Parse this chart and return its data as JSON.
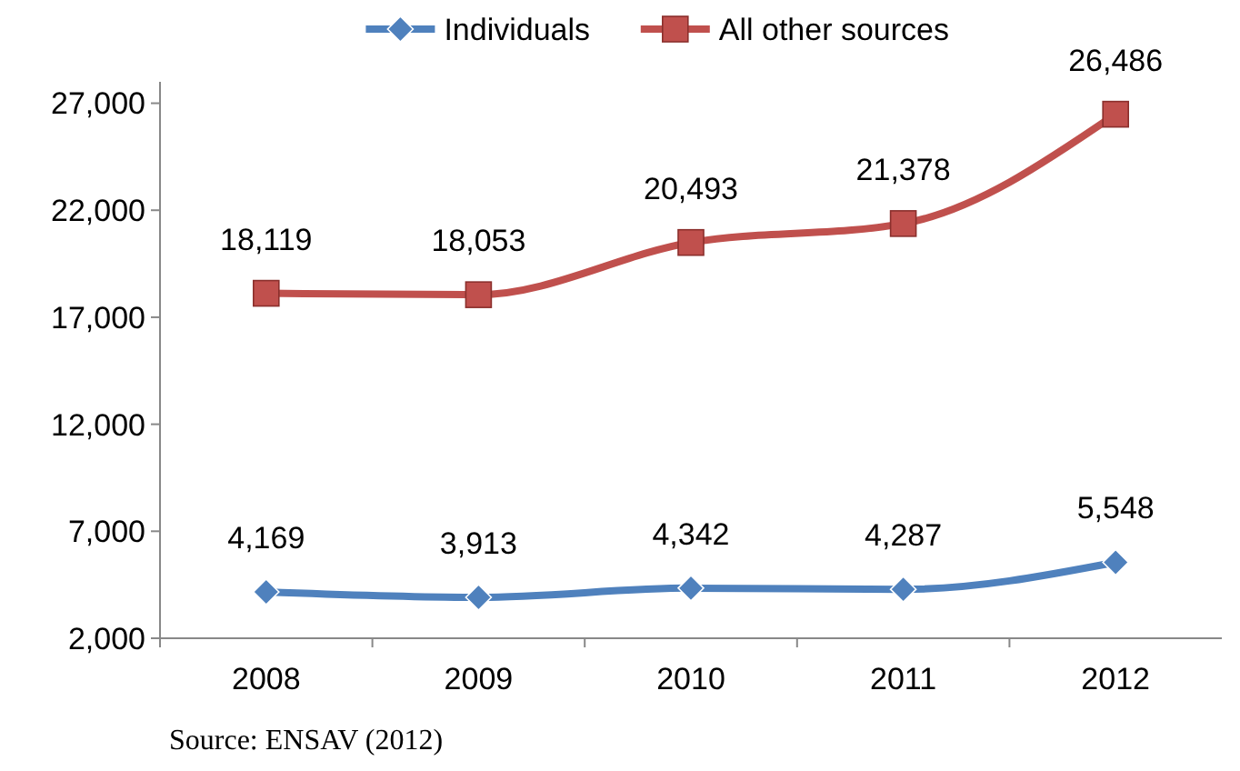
{
  "chart_data": {
    "type": "line",
    "categories": [
      "2008",
      "2009",
      "2010",
      "2011",
      "2012"
    ],
    "series": [
      {
        "name": "Individuals",
        "color": "#4f81bd",
        "marker": "diamond",
        "values": [
          4169,
          3913,
          4342,
          4287,
          5548
        ],
        "value_labels": [
          "4,169",
          "3,913",
          "4,342",
          "4,287",
          "5,548"
        ]
      },
      {
        "name": "All other sources",
        "color": "#c0504d",
        "marker": "square",
        "values": [
          18119,
          18053,
          20493,
          21378,
          26486
        ],
        "value_labels": [
          "18,119",
          "18,053",
          "20,493",
          "21,378",
          "26,486"
        ]
      }
    ],
    "ylim": [
      2000,
      28000
    ],
    "yticks": [
      {
        "value": 2000,
        "label": "2,000"
      },
      {
        "value": 7000,
        "label": "7,000"
      },
      {
        "value": 12000,
        "label": "12,000"
      },
      {
        "value": 17000,
        "label": "17,000"
      },
      {
        "value": 22000,
        "label": "22,000"
      },
      {
        "value": 27000,
        "label": "27,000"
      }
    ],
    "legend": "top",
    "grid": false,
    "annotations": [
      "Source: ENSAV (2012)"
    ]
  }
}
